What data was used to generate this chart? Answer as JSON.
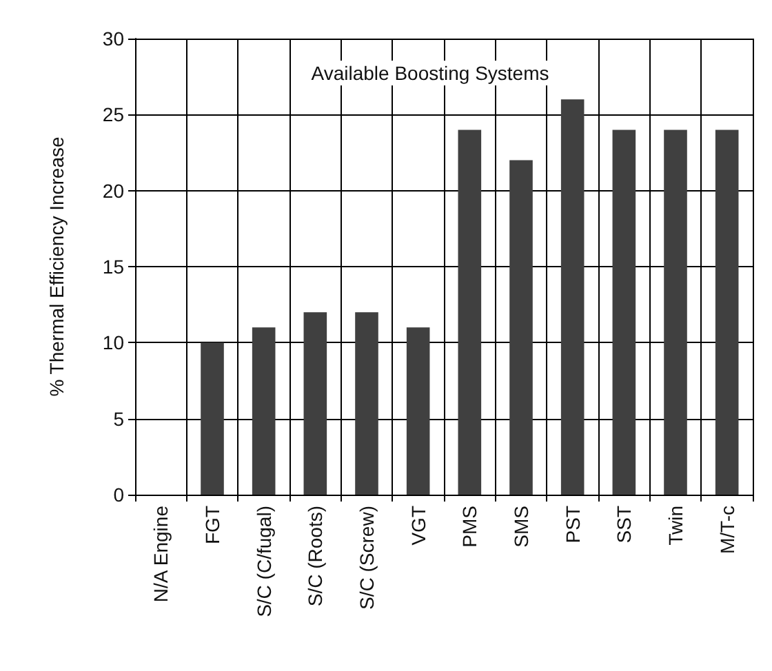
{
  "chart_data": {
    "type": "bar",
    "title": "Available Boosting Systems",
    "ylabel": "% Thermal Efficiency Increase",
    "categories": [
      "N/A Engine",
      "FGT",
      "S/C (C/fugal)",
      "S/C (Roots)",
      "S/C (Screw)",
      "VGT",
      "PMS",
      "SMS",
      "PST",
      "SST",
      "Twin",
      "M/T-c"
    ],
    "values": [
      0,
      10,
      11,
      12,
      12,
      11,
      24,
      22,
      26,
      24,
      24,
      24
    ],
    "color": "#404040",
    "ylim": [
      0,
      30
    ],
    "yticks": [
      0,
      5,
      10,
      15,
      20,
      25,
      30
    ],
    "grid": true
  }
}
